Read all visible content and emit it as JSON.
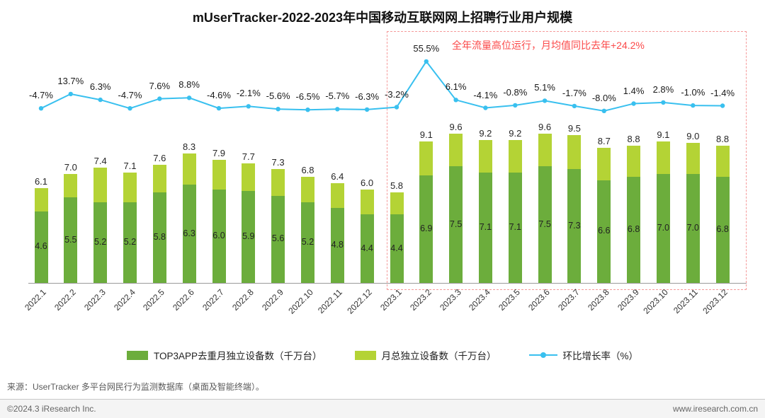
{
  "title": "mUserTracker-2022-2023年中国移动互联网网上招聘行业用户规模",
  "chart_data": {
    "type": "bar",
    "combo": "bar+line",
    "title": "mUserTracker-2022-2023年中国移动互联网网上招聘行业用户规模",
    "categories": [
      "2022.1",
      "2022.2",
      "2022.3",
      "2022.4",
      "2022.5",
      "2022.6",
      "2022.7",
      "2022.8",
      "2022.9",
      "2022.10",
      "2022.11",
      "2022.12",
      "2023.1",
      "2023.2",
      "2023.3",
      "2023.4",
      "2023.5",
      "2023.6",
      "2023.7",
      "2023.8",
      "2023.9",
      "2023.10",
      "2023.11",
      "2023.12"
    ],
    "series": [
      {
        "name": "TOP3APP去重月独立设备数（千万台）",
        "type": "bar",
        "color": "#6cad3c",
        "values": [
          4.6,
          5.5,
          5.2,
          5.2,
          5.8,
          6.3,
          6.0,
          5.9,
          5.6,
          5.2,
          4.8,
          4.4,
          4.4,
          6.9,
          7.5,
          7.1,
          7.1,
          7.5,
          7.3,
          6.6,
          6.8,
          7.0,
          7.0,
          6.8
        ]
      },
      {
        "name": "月总独立设备数（千万台）",
        "type": "bar",
        "color": "#b4d335",
        "values": [
          6.1,
          7.0,
          7.4,
          7.1,
          7.6,
          8.3,
          7.9,
          7.7,
          7.3,
          6.8,
          6.4,
          6.0,
          5.8,
          9.1,
          9.6,
          9.2,
          9.2,
          9.6,
          9.5,
          8.7,
          8.8,
          9.1,
          9.0,
          8.8
        ]
      },
      {
        "name": "环比增长率（%）",
        "type": "line",
        "color": "#39c0ef",
        "unit": "%",
        "values": [
          -4.7,
          13.7,
          6.3,
          -4.7,
          7.6,
          8.8,
          -4.6,
          -2.1,
          -5.6,
          -6.5,
          -5.7,
          -6.3,
          -3.2,
          55.5,
          6.1,
          -4.1,
          -0.8,
          5.1,
          -1.7,
          -8.0,
          1.4,
          2.8,
          -1.0,
          -1.4
        ]
      }
    ],
    "annotation": {
      "text": "全年流量高位运行，月均值同比去年+24.2%",
      "color": "#fb4a4a",
      "applies_to": "2023.1-2023.12"
    },
    "legend_position": "bottom",
    "grid": false
  },
  "legend": [
    {
      "label": "TOP3APP去重月独立设备数（千万台）"
    },
    {
      "label": "月总独立设备数（千万台）"
    },
    {
      "label": "环比增长率（%）"
    }
  ],
  "source": "来源：UserTracker 多平台网民行为监测数据库（桌面及智能终端）。",
  "footer": {
    "copyright": "©2024.3 iResearch Inc.",
    "website": "www.iresearch.com.cn"
  }
}
